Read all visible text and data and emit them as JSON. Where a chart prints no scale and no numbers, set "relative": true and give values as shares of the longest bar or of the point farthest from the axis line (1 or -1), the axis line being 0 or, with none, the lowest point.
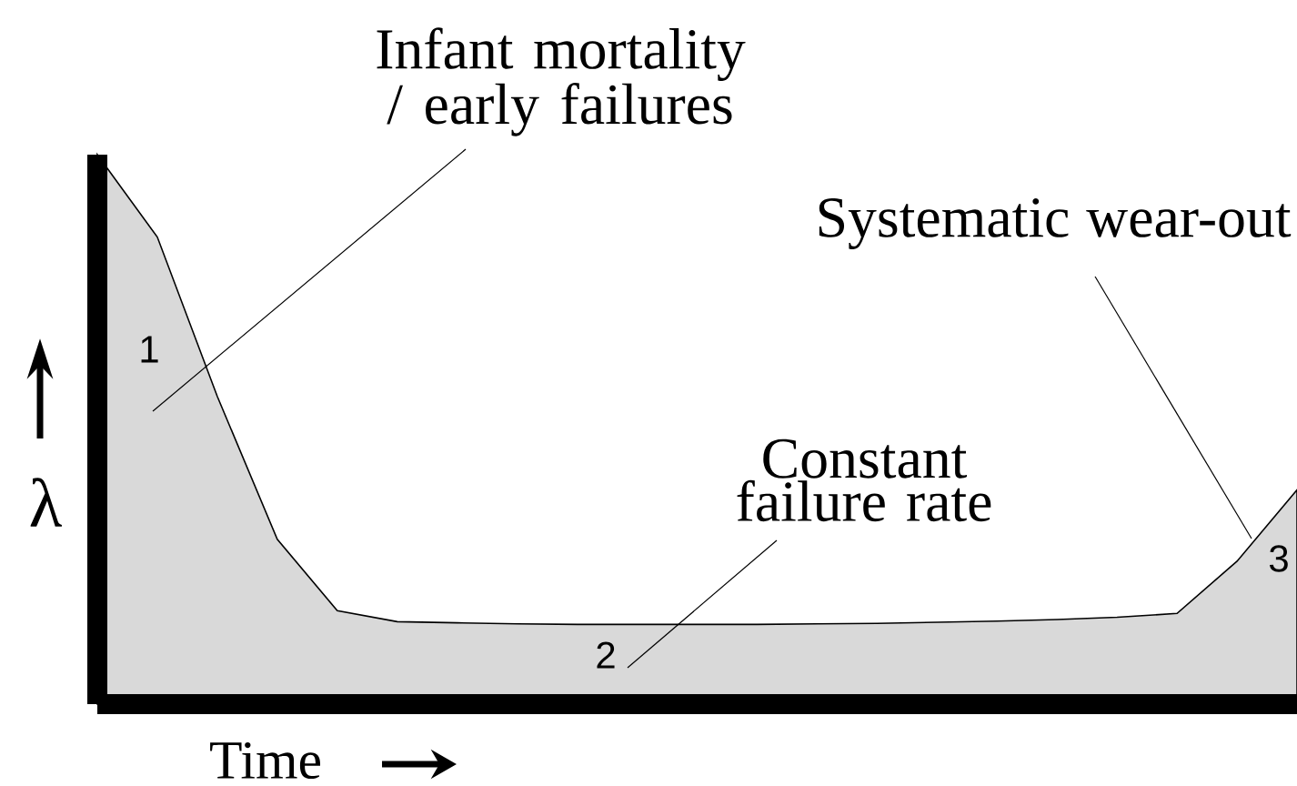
{
  "chart_data": {
    "type": "area",
    "relative": true,
    "xlabel": "Time",
    "ylabel": "λ",
    "categories": [
      null,
      null,
      null,
      null,
      null,
      null,
      null,
      null,
      null,
      null,
      null,
      null,
      null,
      null,
      null,
      null,
      null,
      null,
      null,
      null,
      null
    ],
    "values": [
      1.0,
      0.85,
      0.56,
      0.3,
      0.17,
      0.15,
      0.148,
      0.146,
      0.145,
      0.145,
      0.145,
      0.145,
      0.146,
      0.147,
      0.149,
      0.151,
      0.154,
      0.158,
      0.165,
      0.26,
      0.39
    ],
    "color": "#d9d9d9",
    "annotations": [
      "Infant mortality / early failures",
      "Constant failure rate",
      "Systematic wear-out",
      "1",
      "2",
      "3"
    ]
  }
}
